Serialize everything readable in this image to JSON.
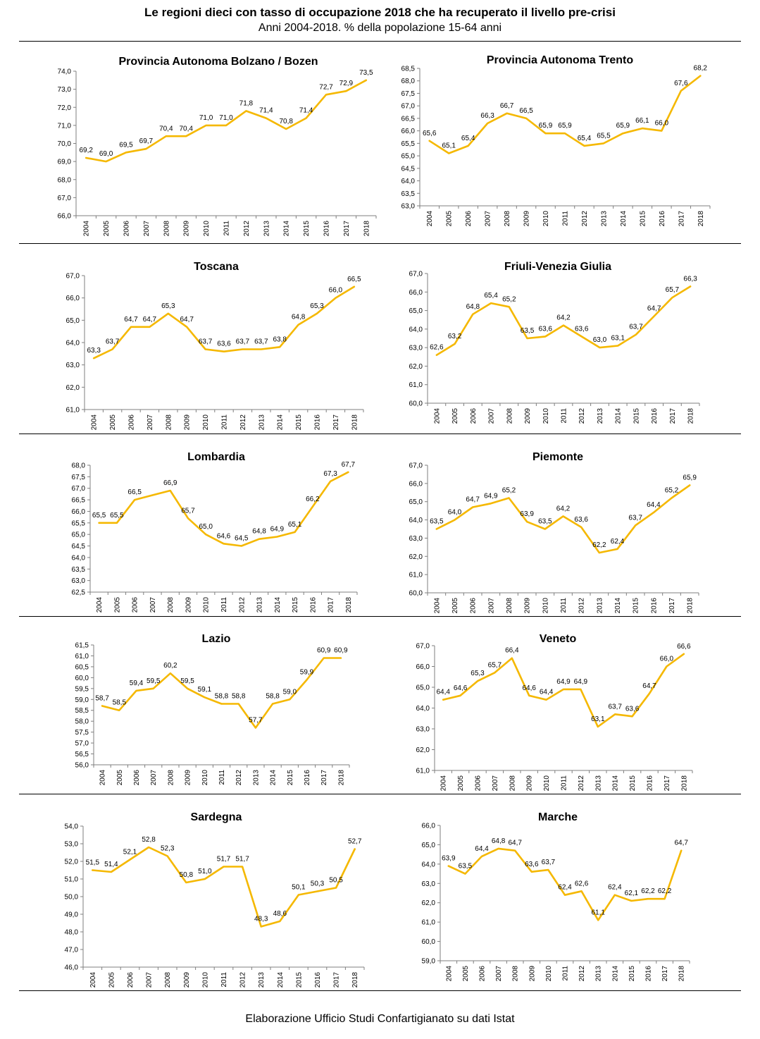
{
  "header": {
    "title": "Le regioni dieci con tasso di occupazione 2018 che ha recuperato il livello pre-crisi",
    "subtitle": "Anni 2004-2018. % della popolazione 15-64 anni"
  },
  "footer": {
    "text": "Elaborazione Ufficio Studi Confartigianato su dati Istat"
  },
  "colors": {
    "series_line": "#F5B800",
    "axis": "#7f7f7f"
  },
  "chart_data": [
    {
      "type": "line",
      "title": "Provincia Autonoma Bolzano / Bozen",
      "x": [
        "2004",
        "2005",
        "2006",
        "2007",
        "2008",
        "2009",
        "2010",
        "2011",
        "2012",
        "2013",
        "2014",
        "2015",
        "2016",
        "2017",
        "2018"
      ],
      "values": [
        69.2,
        69.0,
        69.5,
        69.7,
        70.4,
        70.4,
        71.0,
        71.0,
        71.8,
        71.4,
        70.8,
        71.4,
        72.7,
        72.9,
        73.5
      ],
      "labels": [
        "69,2",
        "69,0",
        "69,5",
        "69,7",
        "70,4",
        "70,4",
        "71,0",
        "71,0",
        "71,8",
        "71,4",
        "70,8",
        "71,4",
        "72,7",
        "72,9",
        "73,5"
      ],
      "yticks": [
        "66,0",
        "67,0",
        "68,0",
        "69,0",
        "70,0",
        "71,0",
        "72,0",
        "73,0",
        "74,0"
      ],
      "ylim": [
        66.0,
        74.0
      ],
      "grid": false
    },
    {
      "type": "line",
      "title": "Provincia Autonoma Trento",
      "x": [
        "2004",
        "2005",
        "2006",
        "2007",
        "2008",
        "2009",
        "2010",
        "2011",
        "2012",
        "2013",
        "2014",
        "2015",
        "2016",
        "2017",
        "2018"
      ],
      "values": [
        65.6,
        65.1,
        65.4,
        66.3,
        66.7,
        66.5,
        65.9,
        65.9,
        65.4,
        65.5,
        65.9,
        66.1,
        66.0,
        67.6,
        68.2
      ],
      "labels": [
        "65,6",
        "65,1",
        "65,4",
        "66,3",
        "66,7",
        "66,5",
        "65,9",
        "65,9",
        "65,4",
        "65,5",
        "65,9",
        "66,1",
        "66,0",
        "67,6",
        "68,2"
      ],
      "yticks": [
        "63,0",
        "63,5",
        "64,0",
        "64,5",
        "65,0",
        "65,5",
        "66,0",
        "66,5",
        "67,0",
        "67,5",
        "68,0",
        "68,5"
      ],
      "ylim": [
        63.0,
        68.5
      ],
      "grid": false
    },
    {
      "type": "line",
      "title": "Toscana",
      "x": [
        "2004",
        "2005",
        "2006",
        "2007",
        "2008",
        "2009",
        "2010",
        "2011",
        "2012",
        "2013",
        "2014",
        "2015",
        "2016",
        "2017",
        "2018"
      ],
      "values": [
        63.3,
        63.7,
        64.7,
        64.7,
        65.3,
        64.7,
        63.7,
        63.6,
        63.7,
        63.7,
        63.8,
        64.8,
        65.3,
        66.0,
        66.5
      ],
      "labels": [
        "63,3",
        "63,7",
        "64,7",
        "64,7",
        "65,3",
        "64,7",
        "63,7",
        "63,6",
        "63,7",
        "63,7",
        "63,8",
        "64,8",
        "65,3",
        "66,0",
        "66,5"
      ],
      "yticks": [
        "61,0",
        "62,0",
        "63,0",
        "64,0",
        "65,0",
        "66,0",
        "67,0"
      ],
      "ylim": [
        61.0,
        67.0
      ],
      "grid": false
    },
    {
      "type": "line",
      "title": "Friuli-Venezia Giulia",
      "x": [
        "2004",
        "2005",
        "2006",
        "2007",
        "2008",
        "2009",
        "2010",
        "2011",
        "2012",
        "2013",
        "2014",
        "2015",
        "2016",
        "2017",
        "2018"
      ],
      "values": [
        62.6,
        63.2,
        64.8,
        65.4,
        65.2,
        63.5,
        63.6,
        64.2,
        63.6,
        63.0,
        63.1,
        63.7,
        64.7,
        65.7,
        66.3
      ],
      "labels": [
        "62,6",
        "63,2",
        "64,8",
        "65,4",
        "65,2",
        "63,5",
        "63,6",
        "64,2",
        "63,6",
        "63,0",
        "63,1",
        "63,7",
        "64,7",
        "65,7",
        "66,3"
      ],
      "yticks": [
        "60,0",
        "61,0",
        "62,0",
        "63,0",
        "64,0",
        "65,0",
        "66,0",
        "67,0"
      ],
      "ylim": [
        60.0,
        67.0
      ],
      "grid": false
    },
    {
      "type": "line",
      "title": "Lombardia",
      "x": [
        "2004",
        "2005",
        "2006",
        "2007",
        "2008",
        "2009",
        "2010",
        "2011",
        "2012",
        "2013",
        "2014",
        "2015",
        "2016",
        "2017",
        "2018"
      ],
      "values": [
        65.5,
        65.5,
        66.5,
        66.7,
        66.9,
        65.7,
        65.0,
        64.6,
        64.5,
        64.8,
        64.9,
        65.1,
        66.2,
        67.3,
        67.7
      ],
      "labels": [
        "65,5",
        "65,5",
        "66,5",
        "",
        "66,9",
        "65,7",
        "65,0",
        "64,6",
        "64,5",
        "64,8",
        "64,9",
        "65,1",
        "66,2",
        "67,3",
        "67,7"
      ],
      "yticks": [
        "62,5",
        "63,0",
        "63,5",
        "64,0",
        "64,5",
        "65,0",
        "65,5",
        "66,0",
        "66,5",
        "67,0",
        "67,5",
        "68,0"
      ],
      "ylim": [
        62.5,
        68.0
      ],
      "grid": false
    },
    {
      "type": "line",
      "title": "Piemonte",
      "x": [
        "2004",
        "2005",
        "2006",
        "2007",
        "2008",
        "2009",
        "2010",
        "2011",
        "2012",
        "2013",
        "2014",
        "2015",
        "2016",
        "2017",
        "2018"
      ],
      "values": [
        63.5,
        64.0,
        64.7,
        64.9,
        65.2,
        63.9,
        63.5,
        64.2,
        63.6,
        62.2,
        62.4,
        63.7,
        64.4,
        65.2,
        65.9
      ],
      "labels": [
        "63,5",
        "64,0",
        "64,7",
        "64,9",
        "65,2",
        "63,9",
        "63,5",
        "64,2",
        "63,6",
        "62,2",
        "62,4",
        "63,7",
        "64,4",
        "65,2",
        "65,9"
      ],
      "yticks": [
        "60,0",
        "61,0",
        "62,0",
        "63,0",
        "64,0",
        "65,0",
        "66,0",
        "67,0"
      ],
      "ylim": [
        60.0,
        67.0
      ],
      "grid": false
    },
    {
      "type": "line",
      "title": "Lazio",
      "x": [
        "2004",
        "2005",
        "2006",
        "2007",
        "2008",
        "2009",
        "2010",
        "2011",
        "2012",
        "2013",
        "2014",
        "2015",
        "2016",
        "2017",
        "2018"
      ],
      "values": [
        58.7,
        58.5,
        59.4,
        59.5,
        60.2,
        59.5,
        59.1,
        58.8,
        58.8,
        57.7,
        58.8,
        59.0,
        59.9,
        60.9,
        60.9
      ],
      "labels": [
        "58,7",
        "58,5",
        "59,4",
        "59,5",
        "60,2",
        "59,5",
        "59,1",
        "58,8",
        "58,8",
        "57,7",
        "58,8",
        "59,0",
        "59,9",
        "60,9",
        "60,9"
      ],
      "yticks": [
        "56,0",
        "56,5",
        "57,0",
        "57,5",
        "58,0",
        "58,5",
        "59,0",
        "59,5",
        "60,0",
        "60,5",
        "61,0",
        "61,5"
      ],
      "ylim": [
        56.0,
        61.5
      ],
      "grid": false
    },
    {
      "type": "line",
      "title": "Veneto",
      "x": [
        "2004",
        "2005",
        "2006",
        "2007",
        "2008",
        "2009",
        "2010",
        "2011",
        "2012",
        "2013",
        "2014",
        "2015",
        "2016",
        "2017",
        "2018"
      ],
      "values": [
        64.4,
        64.6,
        65.3,
        65.7,
        66.4,
        64.6,
        64.4,
        64.9,
        64.9,
        63.1,
        63.7,
        63.6,
        64.7,
        66.0,
        66.6
      ],
      "labels": [
        "64,4",
        "64,6",
        "65,3",
        "65,7",
        "66,4",
        "64,6",
        "64,4",
        "64,9",
        "64,9",
        "63,1",
        "63,7",
        "63,6",
        "64,7",
        "66,0",
        "66,6"
      ],
      "yticks": [
        "61,0",
        "62,0",
        "63,0",
        "64,0",
        "65,0",
        "66,0",
        "67,0"
      ],
      "ylim": [
        61.0,
        67.0
      ],
      "grid": false
    },
    {
      "type": "line",
      "title": "Sardegna",
      "x": [
        "2004",
        "2005",
        "2006",
        "2007",
        "2008",
        "2009",
        "2010",
        "2011",
        "2012",
        "2013",
        "2014",
        "2015",
        "2016",
        "2017",
        "2018"
      ],
      "values": [
        51.5,
        51.4,
        52.1,
        52.8,
        52.3,
        50.8,
        51.0,
        51.7,
        51.7,
        48.3,
        48.6,
        50.1,
        50.3,
        50.5,
        52.7
      ],
      "labels": [
        "51,5",
        "51,4",
        "52,1",
        "52,8",
        "52,3",
        "50,8",
        "51,0",
        "51,7",
        "51,7",
        "48,3",
        "48,6",
        "50,1",
        "50,3",
        "50,5",
        "52,7"
      ],
      "yticks": [
        "46,0",
        "47,0",
        "48,0",
        "49,0",
        "50,0",
        "51,0",
        "52,0",
        "53,0",
        "54,0"
      ],
      "ylim": [
        46.0,
        54.0
      ],
      "grid": false
    },
    {
      "type": "line",
      "title": "Marche",
      "x": [
        "2004",
        "2005",
        "2006",
        "2007",
        "2008",
        "2009",
        "2010",
        "2011",
        "2012",
        "2013",
        "2014",
        "2015",
        "2016",
        "2017",
        "2018"
      ],
      "values": [
        63.9,
        63.5,
        64.4,
        64.8,
        64.7,
        63.6,
        63.7,
        62.4,
        62.6,
        61.1,
        62.4,
        62.1,
        62.2,
        62.2,
        64.7
      ],
      "labels": [
        "63,9",
        "63,5",
        "64,4",
        "64,8",
        "64,7",
        "63,6",
        "63,7",
        "62,4",
        "62,6",
        "61,1",
        "62,4",
        "62,1",
        "62,2",
        "62,2",
        "64,7"
      ],
      "yticks": [
        "59,0",
        "60,0",
        "61,0",
        "62,0",
        "63,0",
        "64,0",
        "65,0",
        "66,0"
      ],
      "ylim": [
        59.0,
        66.0
      ],
      "grid": false
    }
  ]
}
